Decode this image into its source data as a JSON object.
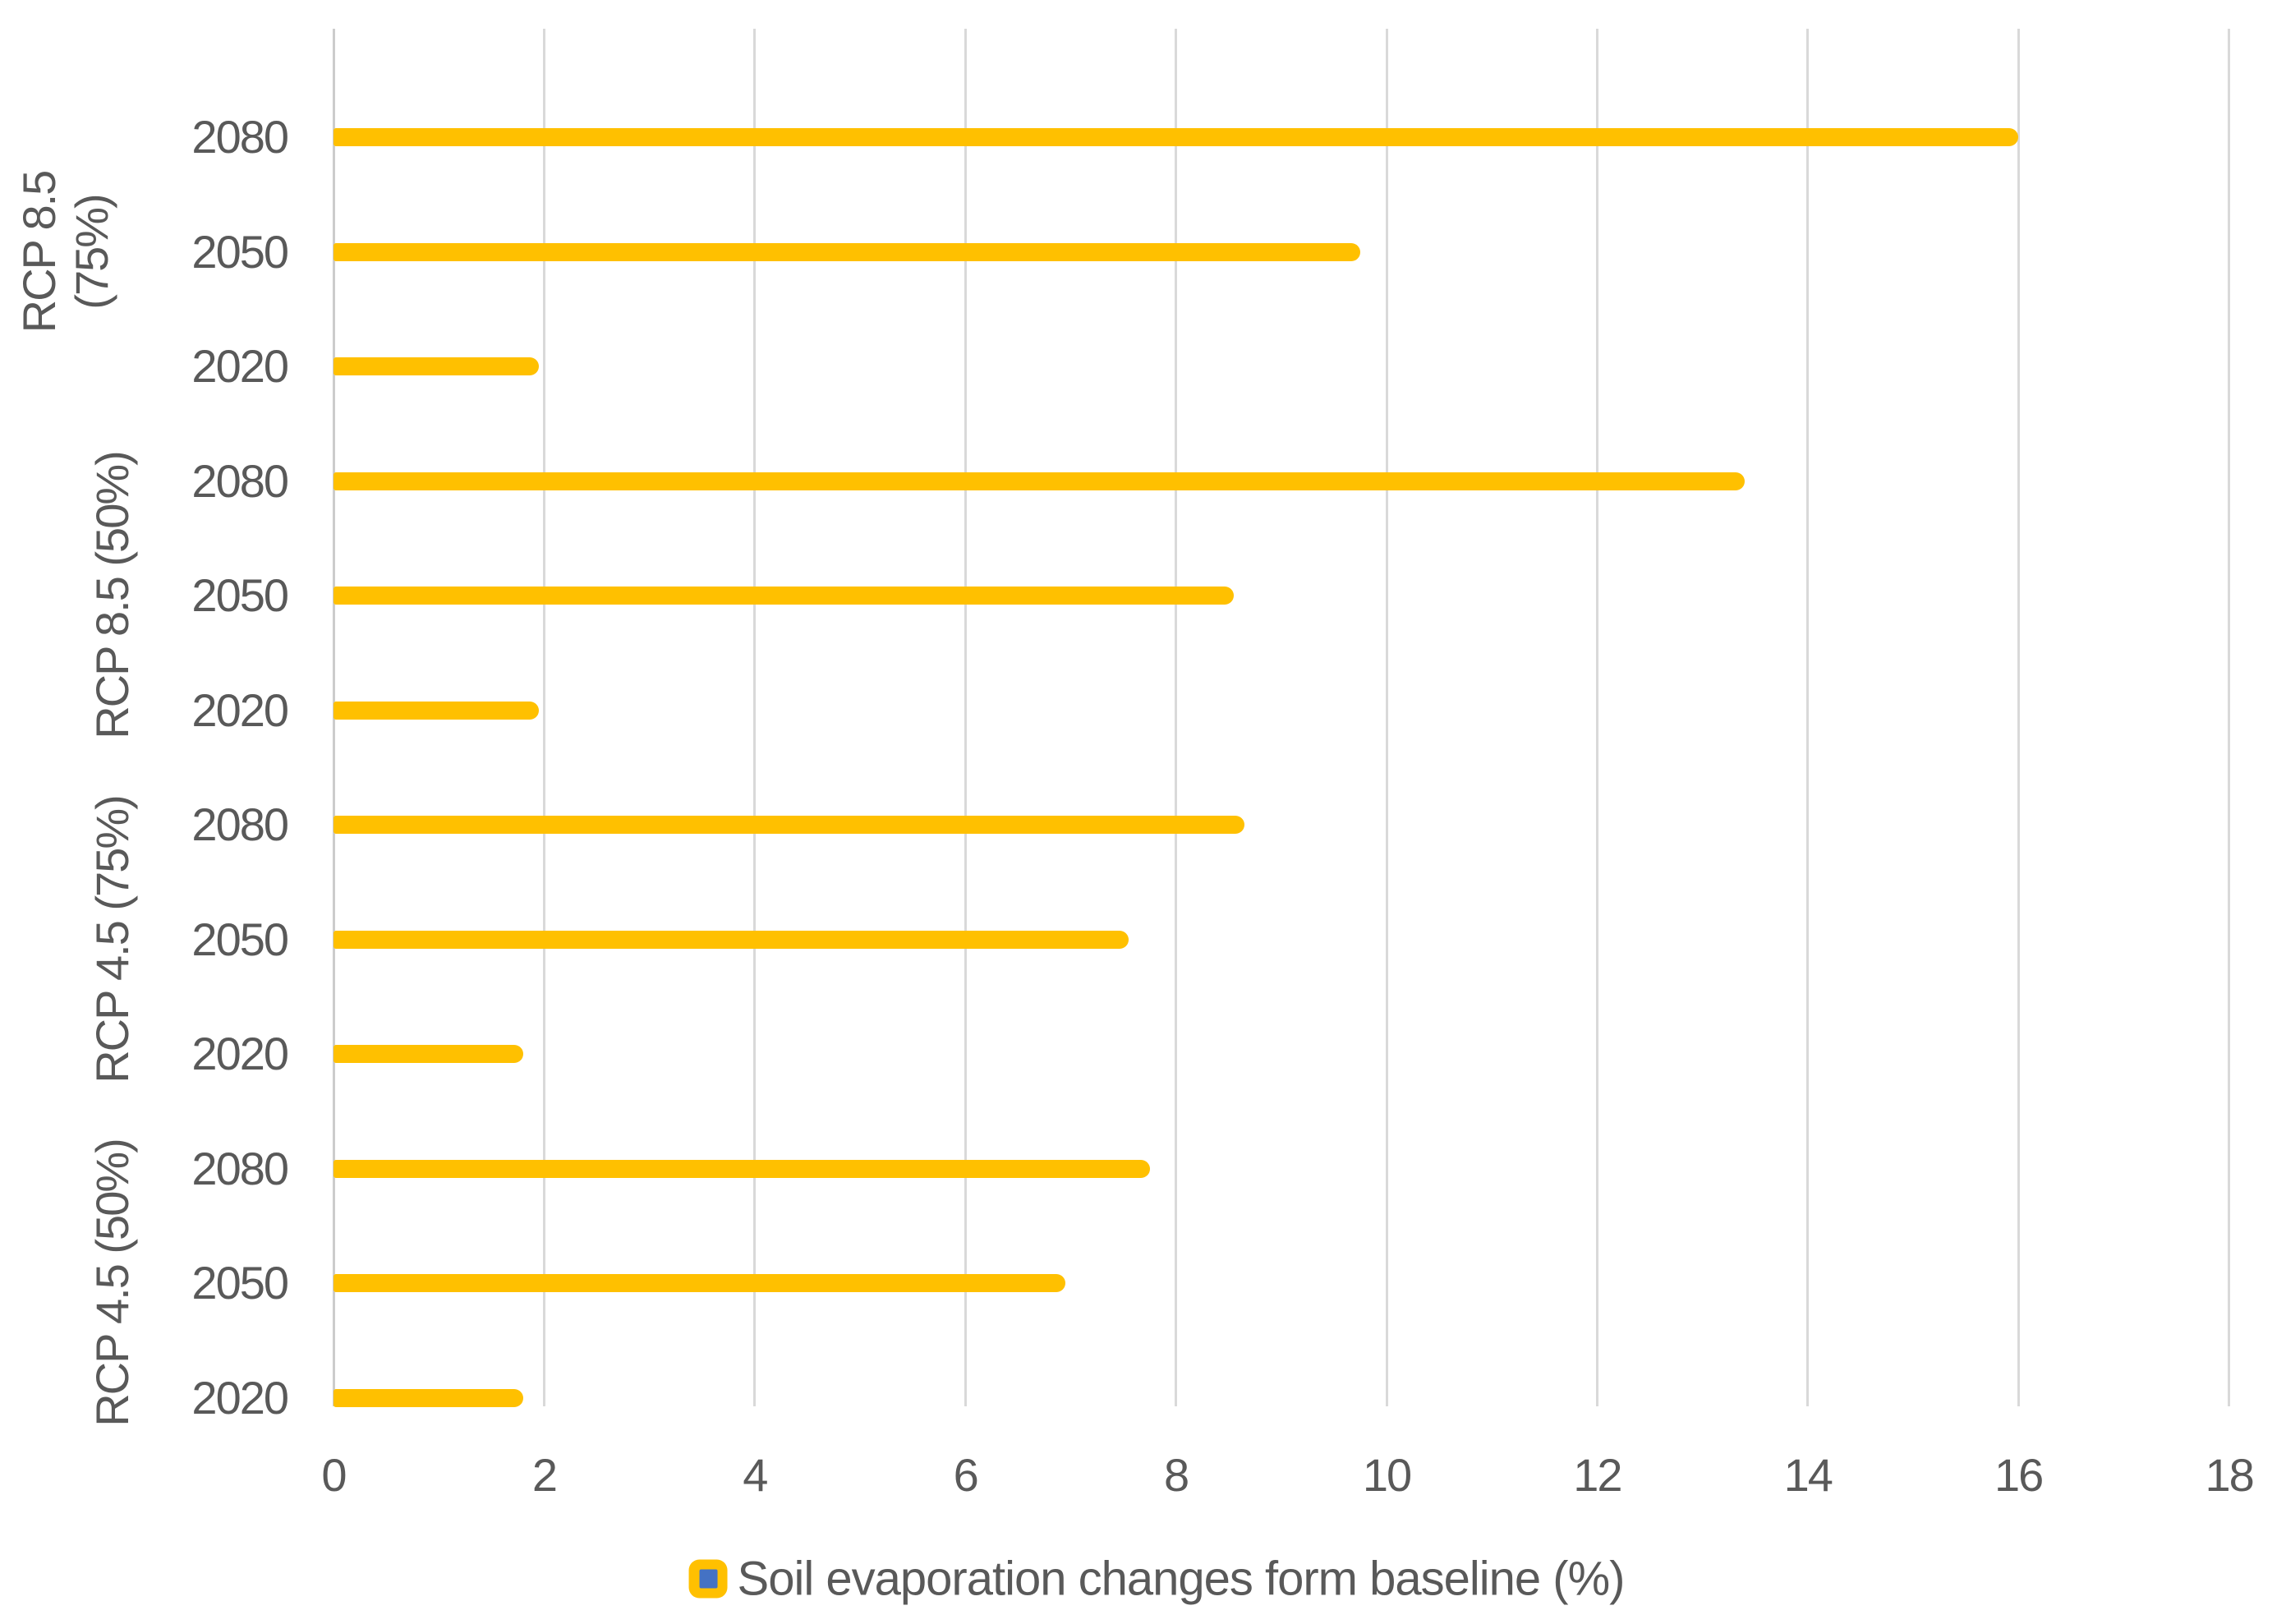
{
  "chart_data": {
    "type": "bar",
    "orientation": "horizontal",
    "title": "",
    "series_name": "Soil evaporation changes form baseline (%)",
    "x_axis": {
      "label": "",
      "min": 0,
      "max": 18,
      "tick_step": 2,
      "ticks": [
        "0",
        "2",
        "4",
        "6",
        "8",
        "10",
        "12",
        "14",
        "16",
        "18"
      ],
      "gridlines": true
    },
    "groups": [
      {
        "label": "RCP 8.5\n(75%)",
        "rows": [
          {
            "year": "2080",
            "value": 16.0
          },
          {
            "year": "2050",
            "value": 9.75
          },
          {
            "year": "2020",
            "value": 1.95
          }
        ]
      },
      {
        "label": "RCP 8.5 (50%)",
        "rows": [
          {
            "year": "2080",
            "value": 13.4
          },
          {
            "year": "2050",
            "value": 8.55
          },
          {
            "year": "2020",
            "value": 1.95
          }
        ]
      },
      {
        "label": "RCP 4.5 (75%)",
        "rows": [
          {
            "year": "2080",
            "value": 8.65
          },
          {
            "year": "2050",
            "value": 7.55
          },
          {
            "year": "2020",
            "value": 1.8
          }
        ]
      },
      {
        "label": "RCP 4.5 (50%)",
        "rows": [
          {
            "year": "2080",
            "value": 7.75
          },
          {
            "year": "2050",
            "value": 6.95
          },
          {
            "year": "2020",
            "value": 1.8
          }
        ]
      }
    ],
    "legend": {
      "label": "Soil evaporation changes form baseline (%)",
      "position": "bottom"
    },
    "colors": {
      "bar": "#FFC000",
      "legend_marker_inner": "#4472C4",
      "text": "#595959",
      "gridline": "#D9D9D9",
      "zero_line": "#CCCCCC",
      "background": "#FFFFFF"
    }
  }
}
